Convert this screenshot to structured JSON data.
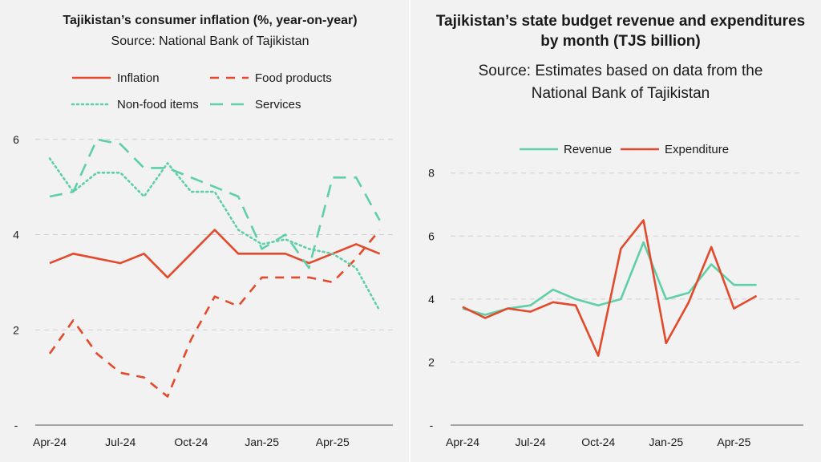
{
  "colors": {
    "red": "#e34a2b",
    "teal": "#5fcfa7",
    "grid": "#d0d0d0",
    "background": "#f2f2f2"
  },
  "chart_data": [
    {
      "type": "line",
      "title": "Tajikistan’s consumer inflation (%, year-on-year)",
      "subtitle": "Source: National Bank of Tajikistan",
      "x_tick_labels": [
        "Apr-24",
        "Jul-24",
        "Oct-24",
        "Jan-25",
        "Apr-25"
      ],
      "x": [
        "Apr-24",
        "May-24",
        "Jun-24",
        "Jul-24",
        "Aug-24",
        "Sep-24",
        "Oct-24",
        "Nov-24",
        "Dec-24",
        "Jan-25",
        "Feb-25",
        "Mar-25",
        "Apr-25",
        "May-25",
        "Jun-25"
      ],
      "y_tick_labels": [
        "-",
        "2",
        "4",
        "6"
      ],
      "ylim": [
        0,
        6.4
      ],
      "yticks": [
        0,
        2,
        4,
        6
      ],
      "grid": true,
      "legend_position": "top",
      "series": [
        {
          "name": "Inflation",
          "color": "#e34a2b",
          "dash": "solid",
          "values": [
            3.4,
            3.6,
            3.5,
            3.4,
            3.6,
            3.1,
            3.6,
            4.1,
            3.6,
            3.6,
            3.6,
            3.4,
            3.6,
            3.8,
            3.6
          ]
        },
        {
          "name": "Food products",
          "color": "#e34a2b",
          "dash": "dashed",
          "values": [
            1.5,
            2.2,
            1.5,
            1.1,
            1.0,
            0.6,
            1.8,
            2.7,
            2.5,
            3.1,
            3.1,
            3.1,
            3.0,
            3.5,
            4.1
          ]
        },
        {
          "name": "Non-food items",
          "color": "#5fcfa7",
          "dash": "dotted",
          "values": [
            5.6,
            4.9,
            5.3,
            5.3,
            4.8,
            5.5,
            4.9,
            4.9,
            4.1,
            3.8,
            3.9,
            3.7,
            3.6,
            3.3,
            2.4
          ]
        },
        {
          "name": "Services",
          "color": "#5fcfa7",
          "dash": "longdash",
          "values": [
            4.8,
            4.9,
            6.0,
            5.9,
            5.4,
            5.4,
            5.2,
            5.0,
            4.8,
            3.7,
            4.0,
            3.3,
            5.2,
            5.2,
            4.3
          ]
        }
      ]
    },
    {
      "type": "line",
      "title": "Tajikistan’s state budget revenue and expenditures by month (TJS billion)",
      "subtitle": "Source: Estimates based on data from the National Bank of Tajikistan",
      "x_tick_labels": [
        "Apr-24",
        "Jul-24",
        "Oct-24",
        "Jan-25",
        "Apr-25"
      ],
      "x": [
        "Apr-24",
        "May-24",
        "Jun-24",
        "Jul-24",
        "Aug-24",
        "Sep-24",
        "Oct-24",
        "Nov-24",
        "Dec-24",
        "Jan-25",
        "Feb-25",
        "Mar-25",
        "Apr-25",
        "May-25"
      ],
      "y_tick_labels": [
        "-",
        "2",
        "4",
        "6",
        "8"
      ],
      "ylim": [
        0,
        8.4
      ],
      "yticks": [
        0,
        2,
        4,
        6,
        8
      ],
      "grid": true,
      "legend_position": "top",
      "series": [
        {
          "name": "Revenue",
          "color": "#5fcfa7",
          "dash": "solid",
          "values": [
            3.7,
            3.5,
            3.7,
            3.8,
            4.3,
            4.0,
            3.8,
            4.0,
            5.8,
            4.0,
            4.2,
            5.1,
            4.45,
            4.45
          ]
        },
        {
          "name": "Expenditure",
          "color": "#e34a2b",
          "dash": "solid",
          "values": [
            3.75,
            3.4,
            3.7,
            3.6,
            3.9,
            3.8,
            2.2,
            5.6,
            6.5,
            2.6,
            3.9,
            5.65,
            3.7,
            4.1
          ]
        }
      ]
    }
  ]
}
